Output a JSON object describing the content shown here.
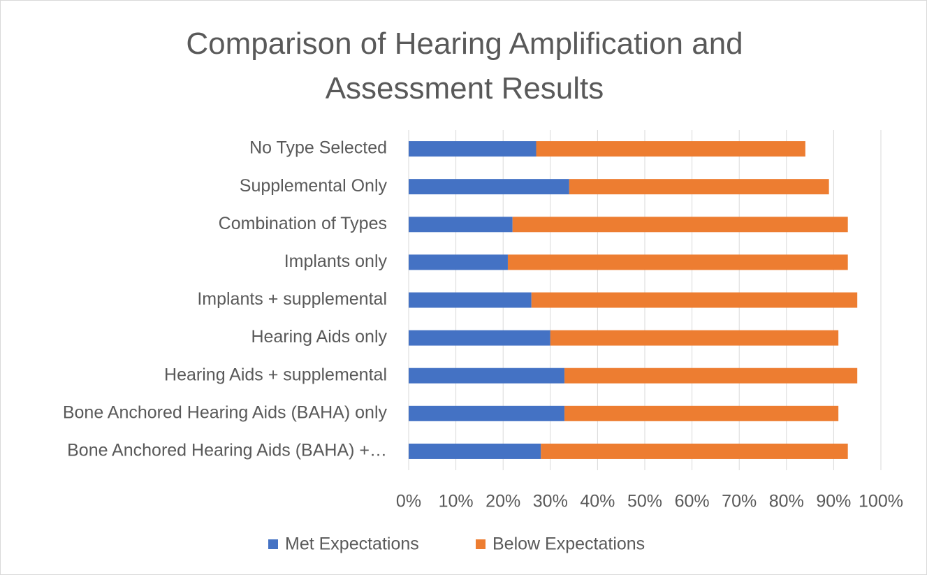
{
  "chart_data": {
    "type": "stacked_bar_horizontal",
    "title": "Comparison of Hearing Amplification and Assessment Results",
    "categories": [
      "No Type  Selected",
      "Supplemental Only",
      "Combination of Types",
      "Implants only",
      "Implants + supplemental",
      "Hearing Aids only",
      "Hearing Aids + supplemental",
      "Bone Anchored Hearing Aids (BAHA) only",
      "Bone Anchored Hearing Aids (BAHA) +…"
    ],
    "series": [
      {
        "name": "Met Expectations",
        "color": "#4472c4",
        "values": [
          27,
          34,
          22,
          21,
          26,
          30,
          33,
          33,
          28
        ]
      },
      {
        "name": "Below Expectations",
        "color": "#ed7d31",
        "values": [
          57,
          55,
          71,
          72,
          69,
          61,
          62,
          58,
          65
        ]
      }
    ],
    "xlim": [
      0,
      100
    ],
    "xticks": [
      {
        "value": 0,
        "label": "0%"
      },
      {
        "value": 10,
        "label": "10%"
      },
      {
        "value": 20,
        "label": "20%"
      },
      {
        "value": 30,
        "label": "30%"
      },
      {
        "value": 40,
        "label": "40%"
      },
      {
        "value": 50,
        "label": "50%"
      },
      {
        "value": 60,
        "label": "60%"
      },
      {
        "value": 70,
        "label": "70%"
      },
      {
        "value": 80,
        "label": "80%"
      },
      {
        "value": 90,
        "label": "90%"
      },
      {
        "value": 100,
        "label": "100%"
      }
    ],
    "grid": true,
    "legend": "bottom"
  }
}
